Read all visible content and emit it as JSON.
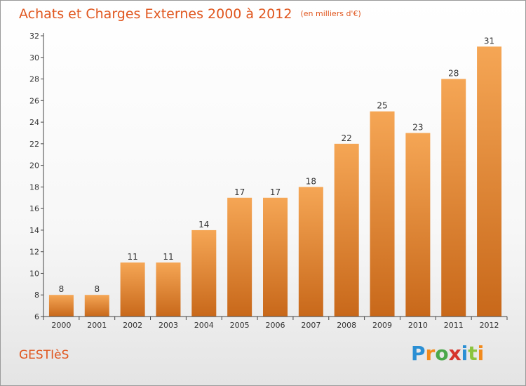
{
  "title": "Achats et Charges Externes 2000 à 2012",
  "unit": "(en milliers d'€)",
  "commune": "GESTIèS",
  "logo": {
    "letters": [
      {
        "char": "P",
        "color": "#2a8fd4"
      },
      {
        "char": "r",
        "color": "#f28a1c"
      },
      {
        "char": "o",
        "color": "#4aa84a"
      },
      {
        "char": "x",
        "color": "#d6342b"
      },
      {
        "char": "i",
        "color": "#2a8fd4"
      },
      {
        "char": "t",
        "color": "#8bc43f"
      },
      {
        "char": "i",
        "color": "#f28a1c"
      }
    ]
  },
  "chart_data": {
    "type": "bar",
    "categories": [
      "2000",
      "2001",
      "2002",
      "2003",
      "2004",
      "2005",
      "2006",
      "2007",
      "2008",
      "2009",
      "2010",
      "2011",
      "2012"
    ],
    "values": [
      8,
      8,
      11,
      11,
      14,
      17,
      17,
      18,
      22,
      25,
      23,
      28,
      31
    ],
    "ylim": [
      6,
      32
    ],
    "yticks": [
      6,
      8,
      10,
      12,
      14,
      16,
      18,
      20,
      22,
      24,
      26,
      28,
      30,
      32
    ],
    "grid": false,
    "colors": {
      "bar_top": "#f5a655",
      "bar_bottom": "#c8681a",
      "axis": "#444444",
      "text": "#333333"
    }
  }
}
